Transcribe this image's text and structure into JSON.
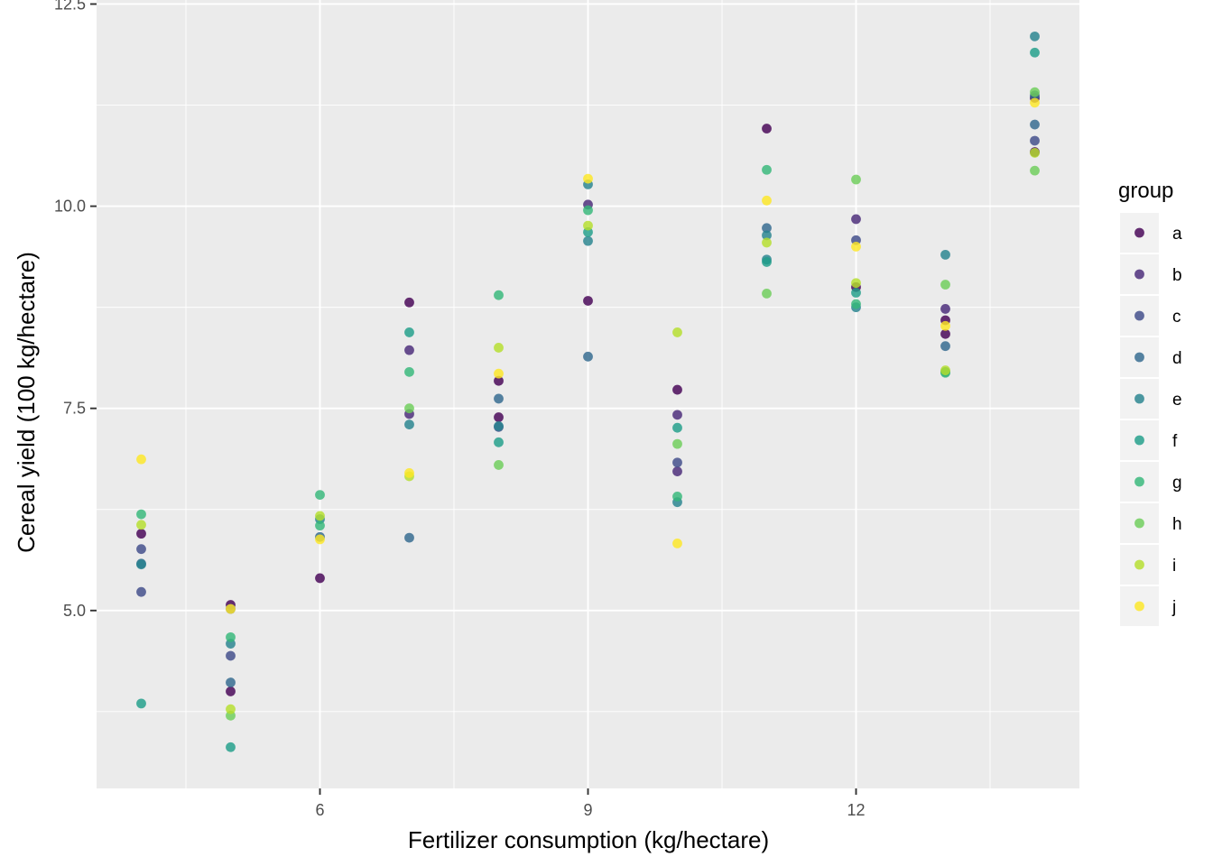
{
  "chart_data": {
    "type": "scatter",
    "title": "",
    "xlabel": "Fertilizer consumption (kg/hectare)",
    "ylabel": "Cereal yield (100 kg/hectare)",
    "xlim": [
      3.5,
      14.5
    ],
    "ylim": [
      2.8,
      12.55
    ],
    "x_ticks": [
      6,
      9,
      12
    ],
    "x_tick_labels": [
      "6",
      "9",
      "12"
    ],
    "x_minor_ticks": [
      4.5,
      7.5,
      10.5,
      13.5
    ],
    "y_ticks": [
      5,
      7.5,
      10,
      12.5
    ],
    "y_tick_labels": [
      "5.0",
      "7.5",
      "10.0",
      "12.5"
    ],
    "y_minor_ticks": [
      3.75,
      6.25,
      8.75,
      11.25
    ],
    "grid": true,
    "legend_title": "group",
    "legend_position": "right",
    "series": [
      {
        "name": "a",
        "color": "#440154",
        "points": [
          [
            4,
            5.95
          ],
          [
            5,
            4.0
          ],
          [
            5,
            5.07
          ],
          [
            6,
            5.4
          ],
          [
            7,
            8.81
          ],
          [
            8,
            7.84
          ],
          [
            8,
            7.39
          ],
          [
            9,
            8.83
          ],
          [
            10,
            7.73
          ],
          [
            11,
            10.96
          ],
          [
            12,
            9.0
          ],
          [
            13,
            8.42
          ],
          [
            13,
            8.59
          ],
          [
            14,
            10.67
          ],
          [
            14,
            11.34
          ]
        ]
      },
      {
        "name": "b",
        "color": "#482878",
        "points": [
          [
            7,
            8.22
          ],
          [
            7,
            7.43
          ],
          [
            9,
            10.02
          ],
          [
            10,
            7.42
          ],
          [
            10,
            6.72
          ],
          [
            12,
            9.84
          ],
          [
            13,
            8.73
          ]
        ]
      },
      {
        "name": "c",
        "color": "#3E4A89",
        "points": [
          [
            4,
            5.23
          ],
          [
            4,
            5.76
          ],
          [
            5,
            4.44
          ],
          [
            5,
            5.02
          ],
          [
            8,
            7.27
          ],
          [
            10,
            6.83
          ],
          [
            12,
            9.58
          ],
          [
            14,
            10.81
          ]
        ]
      },
      {
        "name": "d",
        "color": "#31688E",
        "points": [
          [
            4,
            5.58
          ],
          [
            5,
            4.11
          ],
          [
            6,
            5.91
          ],
          [
            7,
            5.9
          ],
          [
            8,
            7.62
          ],
          [
            9,
            8.14
          ],
          [
            11,
            9.73
          ],
          [
            13,
            8.27
          ],
          [
            14,
            11.01
          ],
          [
            14,
            11.37
          ]
        ]
      },
      {
        "name": "e",
        "color": "#26828E",
        "points": [
          [
            4,
            5.57
          ],
          [
            5,
            4.59
          ],
          [
            6,
            6.13
          ],
          [
            7,
            7.3
          ],
          [
            8,
            7.28
          ],
          [
            9,
            10.27
          ],
          [
            9,
            9.57
          ],
          [
            10,
            6.34
          ],
          [
            11,
            9.64
          ],
          [
            11,
            9.34
          ],
          [
            12,
            8.75
          ],
          [
            13,
            9.4
          ],
          [
            13,
            7.95
          ],
          [
            14,
            12.1
          ]
        ]
      },
      {
        "name": "f",
        "color": "#1F9E89",
        "points": [
          [
            4,
            3.85
          ],
          [
            5,
            3.31
          ],
          [
            7,
            8.44
          ],
          [
            8,
            7.08
          ],
          [
            9,
            9.68
          ],
          [
            10,
            7.26
          ],
          [
            11,
            9.31
          ],
          [
            12,
            8.93
          ],
          [
            14,
            11.9
          ]
        ]
      },
      {
        "name": "g",
        "color": "#35B779",
        "points": [
          [
            4,
            6.19
          ],
          [
            5,
            4.67
          ],
          [
            6,
            6.43
          ],
          [
            6,
            6.05
          ],
          [
            7,
            7.95
          ],
          [
            8,
            8.9
          ],
          [
            9,
            9.95
          ],
          [
            10,
            6.41
          ],
          [
            11,
            10.45
          ],
          [
            12,
            8.79
          ],
          [
            13,
            7.94
          ]
        ]
      },
      {
        "name": "h",
        "color": "#6DCD59",
        "points": [
          [
            5,
            3.7
          ],
          [
            7,
            7.5
          ],
          [
            8,
            6.8
          ],
          [
            10,
            7.06
          ],
          [
            11,
            8.92
          ],
          [
            12,
            10.33
          ],
          [
            13,
            9.03
          ],
          [
            14,
            11.41
          ],
          [
            14,
            10.44
          ]
        ]
      },
      {
        "name": "i",
        "color": "#B4DE2C",
        "points": [
          [
            4,
            6.06
          ],
          [
            5,
            3.78
          ],
          [
            6,
            6.17
          ],
          [
            7,
            6.66
          ],
          [
            8,
            8.25
          ],
          [
            9,
            9.76
          ],
          [
            10,
            8.44
          ],
          [
            11,
            9.55
          ],
          [
            12,
            9.05
          ],
          [
            13,
            7.97
          ],
          [
            14,
            10.66
          ]
        ]
      },
      {
        "name": "j",
        "color": "#FDE725",
        "points": [
          [
            4,
            6.87
          ],
          [
            5,
            5.02
          ],
          [
            6,
            5.88
          ],
          [
            7,
            6.7
          ],
          [
            8,
            7.93
          ],
          [
            9,
            10.34
          ],
          [
            10,
            5.83
          ],
          [
            11,
            10.07
          ],
          [
            12,
            9.5
          ],
          [
            13,
            8.52
          ],
          [
            14,
            11.28
          ]
        ]
      }
    ]
  }
}
